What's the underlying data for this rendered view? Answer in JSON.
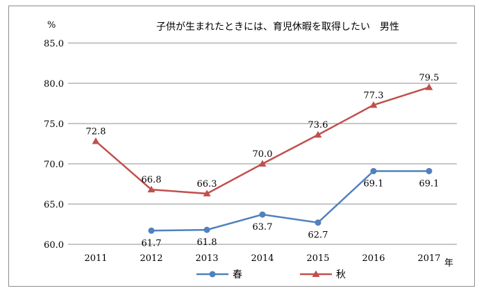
{
  "chart_data": {
    "type": "line",
    "title": "子供が生まれたときには、育児休暇を取得したい　男性",
    "ylabel": "%",
    "xlabel": "年",
    "ylim": [
      60,
      85
    ],
    "yticks": [
      "60.0",
      "65.0",
      "70.0",
      "75.0",
      "80.0",
      "85.0"
    ],
    "categories": [
      "2011",
      "2012",
      "2013",
      "2014",
      "2015",
      "2016",
      "2017"
    ],
    "grid": true,
    "legend_position": "bottom",
    "series": [
      {
        "name": "春",
        "color": "#4f81bd",
        "marker": "circle",
        "values": [
          null,
          61.7,
          61.8,
          63.7,
          62.7,
          69.1,
          69.1
        ],
        "labels": [
          null,
          "61.7",
          "61.8",
          "63.7",
          "62.7",
          "69.1",
          "69.1"
        ]
      },
      {
        "name": "秋",
        "color": "#c0504d",
        "marker": "triangle",
        "values": [
          72.8,
          66.8,
          66.3,
          70.0,
          73.6,
          77.3,
          79.5
        ],
        "labels": [
          "72.8",
          "66.8",
          "66.3",
          "70.0",
          "73.6",
          "77.3",
          "79.5"
        ]
      }
    ]
  }
}
